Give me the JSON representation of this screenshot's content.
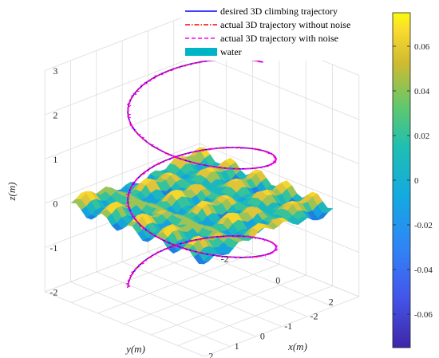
{
  "chart_data": {
    "type": "3d-line-surface",
    "title": "",
    "xlabel": "x(m)",
    "ylabel": "y(m)",
    "zlabel": "z(m)",
    "xlim": [
      -3,
      3
    ],
    "ylim": [
      -3,
      3
    ],
    "zlim": [
      -2,
      3
    ],
    "x_ticks": [
      "-2",
      "0",
      "2"
    ],
    "y_ticks": [
      "2",
      "1",
      "0",
      "-1",
      "-2"
    ],
    "z_ticks": [
      "3",
      "2",
      "1",
      "0",
      "-1",
      "-2"
    ],
    "grid": true,
    "legend_position": "top",
    "legend": [
      {
        "label": "desired 3D climbing trajectory",
        "color": "#0000ff",
        "style": "solid"
      },
      {
        "label": "actual 3D trajectory without noise",
        "color": "#ff0000",
        "style": "dashdot"
      },
      {
        "label": "actual 3D trajectory with noise",
        "color": "#ff00ff",
        "style": "dashed"
      },
      {
        "label": "water",
        "color": "#00b4c8",
        "style": "patch"
      }
    ],
    "colorbar": {
      "ticks": [
        "0.06",
        "0.04",
        "0.02",
        "0",
        "-0.02",
        "-0.04",
        "-0.06"
      ],
      "range": [
        -0.075,
        0.075
      ]
    },
    "helix": {
      "radius": 2,
      "z_start": -1.9,
      "z_end": 2.9,
      "turns": 2.4
    },
    "water_surface": {
      "z": 0,
      "x_range": [
        -2.5,
        2.5
      ],
      "y_range": [
        -2.5,
        2.5
      ],
      "amplitude": 0.07
    }
  }
}
